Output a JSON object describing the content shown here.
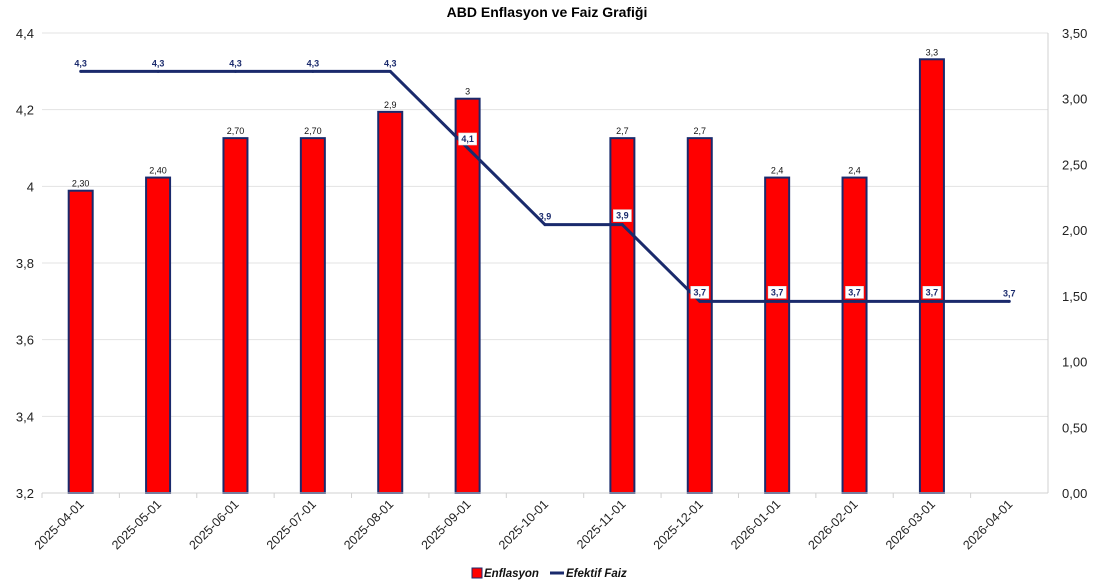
{
  "chart_data": {
    "type": "bar+line",
    "title": "ABD Enflasyon ve Faiz Grafiği",
    "categories": [
      "2025-04-01",
      "2025-05-01",
      "2025-06-01",
      "2025-07-01",
      "2025-08-01",
      "2025-09-01",
      "2025-10-01",
      "2025-11-01",
      "2025-12-01",
      "2026-01-01",
      "2026-02-01",
      "2026-03-01",
      "2026-04-01"
    ],
    "left_axis": {
      "ylim": [
        3.2,
        4.4
      ],
      "ticks": [
        "3,2",
        "3,4",
        "3,6",
        "3,8",
        "4",
        "4,2",
        "4,4"
      ],
      "tick_values": [
        3.2,
        3.4,
        3.6,
        3.8,
        4.0,
        4.2,
        4.4
      ]
    },
    "right_axis": {
      "ylim": [
        0,
        3.5
      ],
      "ticks": [
        "0,00",
        "0,50",
        "1,00",
        "1,50",
        "2,00",
        "2,50",
        "3,00",
        "3,50"
      ],
      "tick_values": [
        0,
        0.5,
        1.0,
        1.5,
        2.0,
        2.5,
        3.0,
        3.5
      ]
    },
    "series": [
      {
        "name": "Enflasyon",
        "type": "bar",
        "axis": "right",
        "color": "#ff0000",
        "border": "#1a2a6c",
        "values": [
          2.3,
          2.4,
          2.7,
          2.7,
          2.9,
          3.0,
          null,
          2.7,
          2.7,
          2.4,
          2.4,
          3.3,
          null
        ],
        "labels": [
          "2,30",
          "2,40",
          "2,70",
          "2,70",
          "2,9",
          "3",
          "",
          "2,7",
          "2,7",
          "2,4",
          "2,4",
          "3,3",
          ""
        ]
      },
      {
        "name": "Efektif Faiz",
        "type": "line",
        "axis": "left",
        "color": "#1a2a6c",
        "values": [
          4.3,
          4.3,
          4.3,
          4.3,
          4.3,
          4.1,
          3.9,
          3.9,
          3.7,
          3.7,
          3.7,
          3.7,
          3.7
        ],
        "labels": [
          "4,3",
          "4,3",
          "4,3",
          "4,3",
          "4,3",
          "4,1",
          "3,9",
          "3,9",
          "3,7",
          "3,7",
          "3,7",
          "3,7",
          "3,7"
        ],
        "label_boxed": [
          false,
          false,
          false,
          false,
          false,
          true,
          false,
          true,
          true,
          true,
          true,
          true,
          false
        ]
      }
    ],
    "legend": {
      "placement": "bottom",
      "items": [
        "Enflasyon",
        "Efektif Faiz"
      ]
    },
    "grid": "horizontal"
  }
}
